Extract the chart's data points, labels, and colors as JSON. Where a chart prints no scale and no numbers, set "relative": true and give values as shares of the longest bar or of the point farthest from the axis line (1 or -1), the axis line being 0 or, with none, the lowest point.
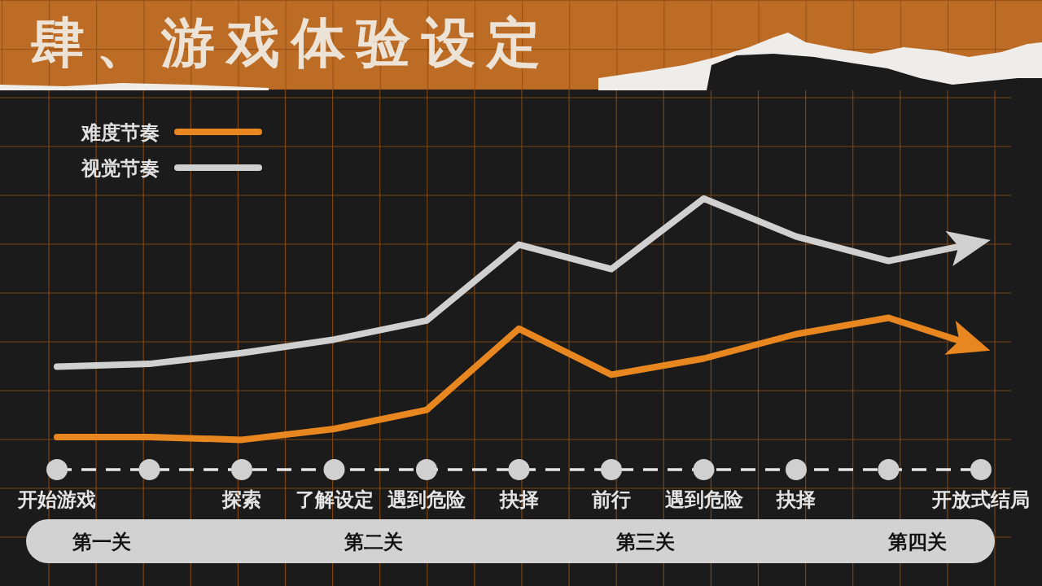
{
  "chart_data": {
    "type": "line",
    "title": "肆、游戏体验设定",
    "categories": [
      "开始游戏",
      null,
      "探索",
      "了解设定",
      "遇到危险",
      "抉择",
      "前行",
      "遇到危险",
      "抉择",
      null,
      "开放式结局"
    ],
    "series": [
      {
        "name": "难度节奏",
        "color": "#e8861f",
        "values": [
          0.12,
          0.12,
          0.11,
          0.15,
          0.22,
          0.52,
          0.35,
          0.41,
          0.5,
          0.56,
          0.45
        ]
      },
      {
        "name": "视觉节奏",
        "color": "#d0d0d0",
        "values": [
          0.38,
          0.39,
          0.43,
          0.48,
          0.55,
          0.83,
          0.74,
          1.0,
          0.86,
          0.77,
          0.84
        ]
      }
    ],
    "relative": true,
    "legend": "top left",
    "grid": true,
    "annotations": [
      "第一关",
      "第二关",
      "第三关",
      "第四关"
    ]
  }
}
